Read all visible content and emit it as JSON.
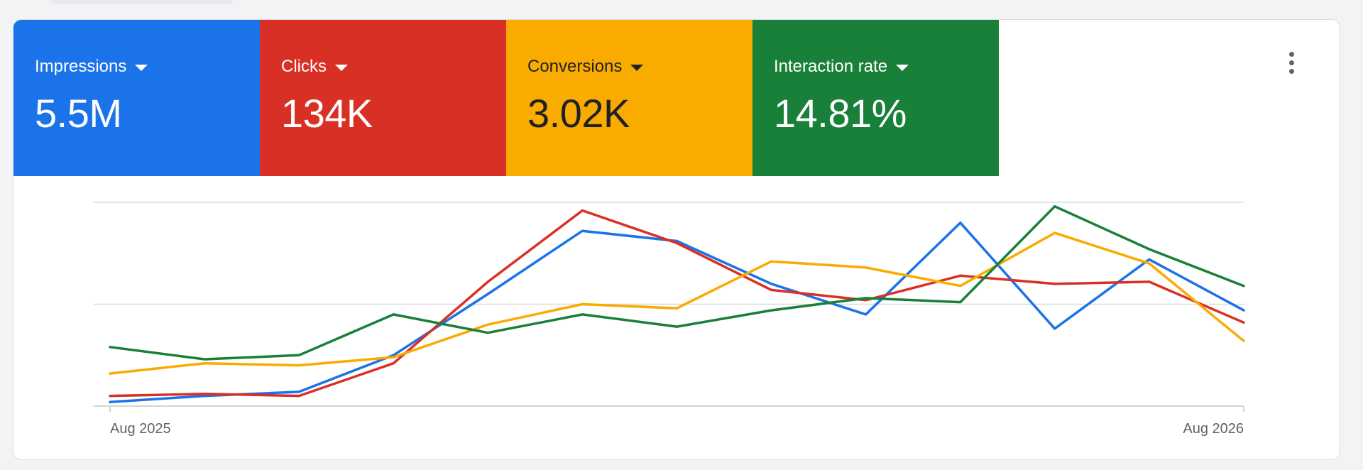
{
  "tiles": [
    {
      "label": "Impressions",
      "value": "5.5M",
      "color": "#1a73e8",
      "text_color": "#ffffff"
    },
    {
      "label": "Clicks",
      "value": "134K",
      "color": "#d93025",
      "text_color": "#ffffff"
    },
    {
      "label": "Conversions",
      "value": "3.02K",
      "color": "#f9ab00",
      "text_color": "#202124"
    },
    {
      "label": "Interaction rate",
      "value": "14.81%",
      "color": "#188038",
      "text_color": "#ffffff"
    }
  ],
  "chart_data": {
    "type": "line",
    "x_tick_labels": [
      "Aug 2025",
      "Aug 2026"
    ],
    "points_count": 13,
    "ylim": [
      0,
      100
    ],
    "gridlines": [
      0,
      50,
      100
    ],
    "series": [
      {
        "name": "Impressions",
        "color": "#1a73e8",
        "values": [
          2,
          5,
          7,
          25,
          55,
          86,
          81,
          60,
          45,
          90,
          38,
          72,
          47
        ]
      },
      {
        "name": "Clicks",
        "color": "#d93025",
        "values": [
          5,
          6,
          5,
          21,
          61,
          96,
          80,
          57,
          52,
          64,
          60,
          61,
          41
        ]
      },
      {
        "name": "Conversions",
        "color": "#f9ab00",
        "values": [
          16,
          21,
          20,
          24,
          40,
          50,
          48,
          71,
          68,
          59,
          85,
          70,
          32
        ]
      },
      {
        "name": "Interaction rate",
        "color": "#188038",
        "values": [
          29,
          23,
          25,
          45,
          36,
          45,
          39,
          47,
          53,
          51,
          98,
          77,
          59
        ]
      }
    ]
  }
}
